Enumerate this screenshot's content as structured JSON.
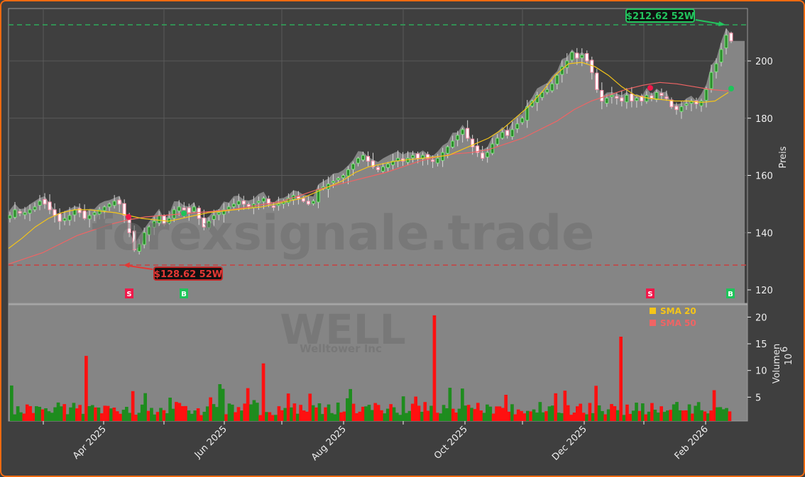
{
  "chart_data": {
    "type": "candlestick",
    "ticker": "WELL",
    "company": "Welltower Inc",
    "watermark": "forexsignale.trade",
    "price_axis": {
      "label": "Preis",
      "ticks": [
        120,
        140,
        160,
        180,
        200
      ],
      "range": [
        115,
        215
      ]
    },
    "volume_axis": {
      "label": "Volumen",
      "unit": "10^6",
      "unit_base": "10",
      "unit_exp": "6",
      "ticks": [
        5,
        10,
        15,
        20
      ],
      "range": [
        0,
        22
      ]
    },
    "x_axis": {
      "tick_labels": [
        "Apr 2025",
        "Jun 2025",
        "Aug 2025",
        "Oct 2025",
        "Dec 2025",
        "Feb 2026"
      ]
    },
    "legend": [
      {
        "label": "SMA 20",
        "color": "#f5c518"
      },
      {
        "label": "SMA 50",
        "color": "#f06464"
      }
    ],
    "annotations": {
      "high_52w": {
        "label": "$212.62 52W",
        "value": 212.62,
        "color": "#22c55e"
      },
      "low_52w": {
        "label": "$128.62 52W",
        "value": 128.62,
        "color": "#e53935"
      }
    },
    "signals": [
      {
        "type": "S",
        "date": "Apr 2025",
        "price": 145.5
      },
      {
        "type": "B",
        "date": "May 2025",
        "price": 146.5
      },
      {
        "type": "S",
        "date": "Jan 2026",
        "price": 190.5
      },
      {
        "type": "B",
        "date": "Feb 2026",
        "price": 190.0
      }
    ],
    "close_approx": [
      146,
      148,
      147,
      147,
      148,
      149,
      151,
      150,
      148,
      146,
      144,
      145,
      146,
      148,
      147,
      145,
      146,
      147,
      148,
      149,
      150,
      151,
      150,
      146,
      140,
      134,
      136,
      140,
      142,
      144,
      146,
      143,
      145,
      148,
      149,
      148,
      147,
      149,
      145,
      142,
      144,
      146,
      147,
      148,
      149,
      150,
      151,
      150,
      149,
      150,
      151,
      152,
      150,
      149,
      150,
      151,
      152,
      153,
      152,
      151,
      150,
      151,
      155,
      156,
      157,
      158,
      159,
      160,
      162,
      164,
      166,
      167,
      165,
      163,
      162,
      163,
      164,
      165,
      166,
      165,
      166,
      167,
      166,
      167,
      166,
      165,
      166,
      168,
      170,
      172,
      174,
      176,
      173,
      170,
      168,
      166,
      168,
      171,
      173,
      175,
      174,
      176,
      178,
      180,
      184,
      186,
      188,
      189,
      190,
      192,
      195,
      198,
      200,
      203,
      201,
      202,
      200,
      196,
      190,
      186,
      187,
      188,
      187,
      186,
      188,
      186,
      187,
      186,
      188,
      187,
      189,
      188,
      187,
      184,
      183,
      184,
      185,
      186,
      185,
      186,
      190,
      196,
      199,
      204,
      209,
      207
    ],
    "sma20_approx": [
      134.5,
      138,
      142,
      145,
      147,
      148,
      148,
      147.5,
      147,
      146,
      145,
      144.5,
      144,
      145,
      146,
      147,
      147.5,
      148,
      148.5,
      149,
      150,
      151,
      152,
      154,
      156,
      158,
      161,
      163,
      164,
      165,
      165.5,
      166,
      166.5,
      167,
      169,
      171,
      173,
      176,
      180,
      184,
      189,
      195,
      199,
      199.5,
      198,
      195,
      191,
      188,
      187,
      186.5,
      186,
      186,
      185.5,
      186,
      189
    ],
    "sma50_approx": [
      129,
      131,
      133,
      136,
      139,
      141,
      143,
      144.5,
      145.5,
      146,
      146.5,
      147,
      147.5,
      148,
      149,
      150,
      151,
      153,
      155,
      156.5,
      158,
      159.5,
      161,
      163,
      165,
      166.5,
      167.5,
      168,
      169,
      171,
      173,
      176,
      179,
      183,
      186,
      188,
      190,
      191.5,
      192.5,
      192,
      191,
      190,
      189.5
    ],
    "volume_peaks": {
      "max_red": 20.2,
      "second_red": 16.2,
      "third_red": 12.6,
      "fourth_red": 11.2
    }
  }
}
